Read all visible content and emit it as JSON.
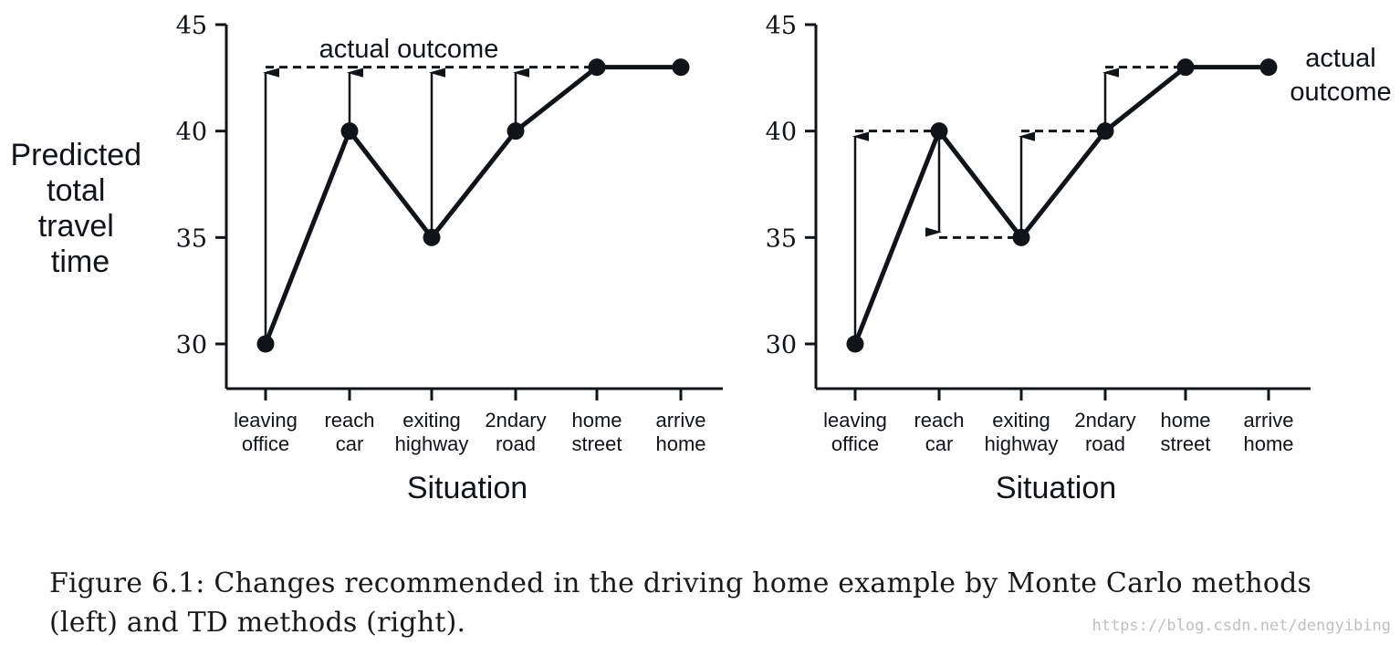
{
  "chart_data": [
    {
      "type": "line",
      "ylabel": "Predicted total travel time",
      "xlabel": "Situation",
      "ylim": [
        27.9,
        45
      ],
      "yticks": [
        30,
        35,
        40,
        45
      ],
      "categories": [
        "leaving office",
        "reach car",
        "exiting highway",
        "2ndary road",
        "home street",
        "arrive home"
      ],
      "values": [
        30,
        40,
        35,
        40,
        43,
        43
      ],
      "annotation": "actual outcome",
      "actual_outcome": 43,
      "updates": [
        {
          "category": "leaving office",
          "from": 30,
          "to": 43
        },
        {
          "category": "reach car",
          "from": 40,
          "to": 43
        },
        {
          "category": "exiting highway",
          "from": 35,
          "to": 43
        },
        {
          "category": "2ndary road",
          "from": 40,
          "to": 43
        }
      ]
    },
    {
      "type": "line",
      "xlabel": "Situation",
      "ylim": [
        27.9,
        45
      ],
      "yticks": [
        30,
        35,
        40,
        45
      ],
      "categories": [
        "leaving office",
        "reach car",
        "exiting highway",
        "2ndary road",
        "home street",
        "arrive home"
      ],
      "values": [
        30,
        40,
        35,
        40,
        43,
        43
      ],
      "annotation": "actual outcome",
      "updates": [
        {
          "category": "leaving office",
          "from": 30,
          "to": 40
        },
        {
          "category": "reach car",
          "from": 40,
          "to": 35
        },
        {
          "category": "exiting highway",
          "from": 35,
          "to": 40
        },
        {
          "category": "2ndary road",
          "from": 40,
          "to": 43
        }
      ]
    }
  ],
  "caption": "Figure 6.1: Changes recommended in the driving home example by Monte Carlo methods (left) and TD methods (right).",
  "watermark": "https://blog.csdn.net/dengyibing",
  "colors": {
    "ink": "#101418"
  }
}
